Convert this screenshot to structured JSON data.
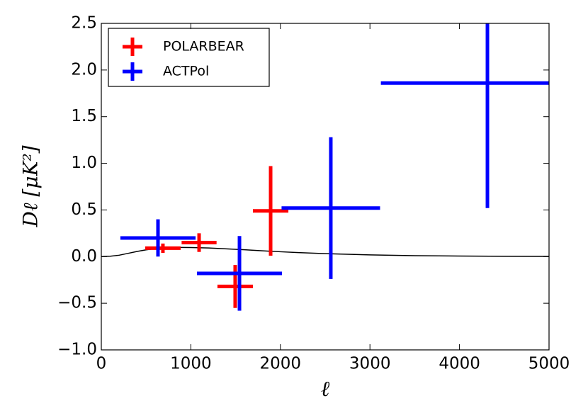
{
  "chart_data": {
    "type": "errorbar",
    "xlabel": "ℓ",
    "ylabel": "Dℓ [μK²]",
    "xlim": [
      0,
      5000
    ],
    "ylim": [
      -1.0,
      2.5
    ],
    "xticks": [
      0,
      1000,
      2000,
      3000,
      4000,
      5000
    ],
    "yticks": [
      {
        "value": -1.0,
        "label": "−1.0"
      },
      {
        "value": -0.5,
        "label": "−0.5"
      },
      {
        "value": 0,
        "label": "0.0"
      },
      {
        "value": 0.5,
        "label": "0.5"
      },
      {
        "value": 1.0,
        "label": "1.0"
      },
      {
        "value": 1.5,
        "label": "1.5"
      },
      {
        "value": 2.0,
        "label": "2.0"
      },
      {
        "value": 2.5,
        "label": "2.5"
      }
    ],
    "legend": "upper left",
    "series": [
      {
        "name": "POLARBEAR",
        "color": "#ff0000",
        "x": [
          688,
          1092,
          1495,
          1891
        ],
        "values": [
          0.09,
          0.15,
          -0.32,
          0.49
        ],
        "xerr": [
          198,
          195,
          198,
          198
        ],
        "yerr": [
          0.05,
          0.1,
          0.23,
          0.48
        ]
      },
      {
        "name": "ACTPol",
        "color": "#0000ff",
        "x": [
          633,
          1543,
          2563,
          4312
        ],
        "values": [
          0.2,
          -0.18,
          0.52,
          1.86
        ],
        "xerr": [
          420,
          475,
          550,
          1190
        ],
        "yerr": [
          0.2,
          0.4,
          0.76,
          1.34
        ]
      }
    ],
    "theory": {
      "color": "#000000",
      "x": [
        0,
        100,
        200,
        300,
        400,
        500,
        600,
        700,
        800,
        900,
        1000,
        1200,
        1400,
        1600,
        1800,
        2000,
        2200,
        2500,
        3000,
        3500,
        4000,
        4500,
        5000
      ],
      "values": [
        0,
        0.004,
        0.015,
        0.035,
        0.055,
        0.072,
        0.085,
        0.093,
        0.097,
        0.098,
        0.097,
        0.092,
        0.083,
        0.073,
        0.062,
        0.052,
        0.043,
        0.032,
        0.018,
        0.01,
        0.006,
        0.003,
        0.002
      ]
    }
  }
}
